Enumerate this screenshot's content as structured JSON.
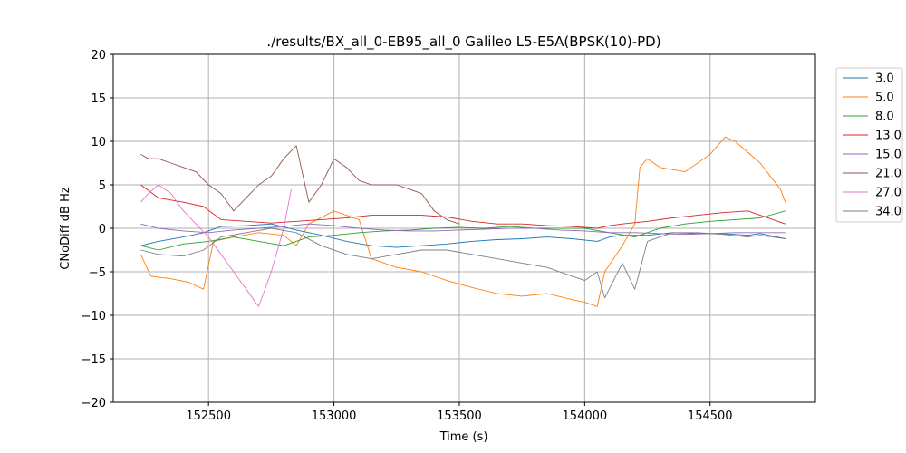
{
  "chart_data": {
    "type": "line",
    "title": "./results/BX_all_0-EB95_all_0 Galileo L5-E5A(BPSK(10)-PD)",
    "xlabel": "Time (s)",
    "ylabel": "CNoDiff dB Hz",
    "xlim": [
      152120,
      154920
    ],
    "ylim": [
      -20,
      20
    ],
    "xticks": [
      152500,
      153000,
      153500,
      154000,
      154500
    ],
    "yticks": [
      -20,
      -15,
      -10,
      -5,
      0,
      5,
      10,
      15,
      20
    ],
    "grid": true,
    "legend_position": "right, outside plot, top",
    "series": [
      {
        "name": "3.0",
        "color": "#1f77b4",
        "x": [
          152230,
          152300,
          152400,
          152480,
          152550,
          152650,
          152750,
          152850,
          152950,
          153050,
          153150,
          153250,
          153350,
          153450,
          153550,
          153650,
          153750,
          153850,
          153950,
          154050,
          154100,
          154150,
          154250,
          154350,
          154450,
          154550,
          154650,
          154700,
          154800
        ],
        "y": [
          -2.0,
          -1.5,
          -1.0,
          -0.5,
          0.2,
          0.3,
          0.5,
          -0.2,
          -0.8,
          -1.5,
          -2.0,
          -2.2,
          -2.0,
          -1.8,
          -1.5,
          -1.3,
          -1.2,
          -1.0,
          -1.2,
          -1.5,
          -1.0,
          -0.8,
          -0.8,
          -0.5,
          -0.6,
          -0.6,
          -0.8,
          -0.6,
          -1.2
        ]
      },
      {
        "name": "5.0",
        "color": "#ff7f0e",
        "x": [
          152230,
          152270,
          152350,
          152420,
          152480,
          152520,
          152600,
          152700,
          152800,
          152850,
          152900,
          153000,
          153100,
          153150,
          153250,
          153350,
          153450,
          153550,
          153650,
          153750,
          153850,
          153950,
          154000,
          154050,
          154080,
          154150,
          154200,
          154220,
          154250,
          154300,
          154400,
          154500,
          154560,
          154600,
          154700,
          154780,
          154800
        ],
        "y": [
          -3.0,
          -5.5,
          -5.8,
          -6.2,
          -7.0,
          -1.5,
          -1.0,
          -0.5,
          -0.8,
          -2.0,
          0.5,
          2.0,
          1.0,
          -3.5,
          -4.5,
          -5.0,
          -6.0,
          -6.8,
          -7.5,
          -7.8,
          -7.5,
          -8.2,
          -8.5,
          -9.0,
          -5.0,
          -2.0,
          0.5,
          7.0,
          8.0,
          7.0,
          6.5,
          8.5,
          10.5,
          10.0,
          7.5,
          4.5,
          3.0
        ]
      },
      {
        "name": "8.0",
        "color": "#2ca02c",
        "x": [
          152230,
          152300,
          152400,
          152500,
          152600,
          152700,
          152800,
          152900,
          153000,
          153100,
          153200,
          153300,
          153400,
          153500,
          153600,
          153700,
          153800,
          153900,
          154000,
          154100,
          154200,
          154300,
          154400,
          154500,
          154600,
          154700,
          154800
        ],
        "y": [
          -2.0,
          -2.5,
          -1.8,
          -1.5,
          -1.0,
          -1.5,
          -2.0,
          -1.0,
          -0.8,
          -0.5,
          -0.3,
          -0.2,
          0.0,
          0.1,
          0.0,
          0.2,
          0.0,
          0.0,
          0.0,
          -0.5,
          -1.0,
          0.0,
          0.5,
          0.8,
          1.0,
          1.2,
          2.0
        ]
      },
      {
        "name": "13.0",
        "color": "#d62728",
        "x": [
          152230,
          152300,
          152400,
          152480,
          152550,
          152650,
          152750,
          152850,
          152950,
          153050,
          153150,
          153250,
          153350,
          153450,
          153550,
          153650,
          153750,
          153850,
          153950,
          154050,
          154100,
          154150,
          154250,
          154350,
          154450,
          154550,
          154650,
          154700,
          154800
        ],
        "y": [
          5.0,
          3.5,
          3.0,
          2.5,
          1.0,
          0.8,
          0.6,
          0.8,
          1.0,
          1.2,
          1.5,
          1.5,
          1.5,
          1.3,
          0.8,
          0.5,
          0.5,
          0.3,
          0.2,
          0.0,
          0.3,
          0.5,
          0.8,
          1.2,
          1.5,
          1.8,
          2.0,
          1.5,
          0.5
        ]
      },
      {
        "name": "15.0",
        "color": "#9467bd",
        "x": [
          152230,
          152300,
          152400,
          152500,
          152600,
          152700,
          152800,
          152900,
          153000,
          153100,
          153200,
          153300,
          153400,
          153500,
          153600,
          153700,
          153800,
          153900,
          154000,
          154100,
          154200,
          154300,
          154400,
          154500,
          154600,
          154700,
          154800
        ],
        "y": [
          0.5,
          0.0,
          -0.3,
          -0.5,
          -0.2,
          0.0,
          0.2,
          0.5,
          0.3,
          0.0,
          -0.2,
          -0.3,
          -0.3,
          -0.2,
          -0.1,
          0.0,
          0.0,
          -0.2,
          -0.3,
          -0.5,
          -0.5,
          -0.6,
          -0.7,
          -0.6,
          -0.5,
          -0.5,
          -0.5
        ]
      },
      {
        "name": "21.0",
        "color": "#8c564b",
        "x": [
          152230,
          152260,
          152300,
          152350,
          152400,
          152450,
          152500,
          152550,
          152600,
          152650,
          152700,
          152750,
          152800,
          152850,
          152900,
          152950,
          153000,
          153050,
          153100,
          153150,
          153200,
          153250,
          153300,
          153350,
          153400,
          153450,
          153500
        ],
        "y": [
          8.5,
          8.0,
          8.0,
          7.5,
          7.0,
          6.5,
          5.0,
          4.0,
          2.0,
          3.5,
          5.0,
          6.0,
          8.0,
          9.5,
          3.0,
          5.0,
          8.0,
          7.0,
          5.5,
          5.0,
          5.0,
          5.0,
          4.5,
          4.0,
          2.0,
          1.0,
          0.5
        ]
      },
      {
        "name": "27.0",
        "color": "#e377c2",
        "x": [
          152230,
          152260,
          152300,
          152350,
          152400,
          152450,
          152500,
          152550,
          152600,
          152650,
          152700,
          152750,
          152800,
          152830
        ],
        "y": [
          3.0,
          4.0,
          5.0,
          4.0,
          2.0,
          0.5,
          -1.0,
          -3.0,
          -5.0,
          -7.0,
          -9.0,
          -5.0,
          0.0,
          4.5
        ]
      },
      {
        "name": "34.0",
        "color": "#7f7f7f",
        "x": [
          152230,
          152300,
          152400,
          152480,
          152550,
          152650,
          152750,
          152850,
          152950,
          153050,
          153150,
          153250,
          153350,
          153450,
          153550,
          153650,
          153750,
          153850,
          153950,
          154000,
          154050,
          154080,
          154150,
          154200,
          154250,
          154350,
          154450,
          154550,
          154650,
          154700,
          154800
        ],
        "y": [
          -2.5,
          -3.0,
          -3.2,
          -2.5,
          -1.0,
          -0.5,
          0.0,
          -0.5,
          -2.0,
          -3.0,
          -3.5,
          -3.0,
          -2.5,
          -2.5,
          -3.0,
          -3.5,
          -4.0,
          -4.5,
          -5.5,
          -6.0,
          -5.0,
          -8.0,
          -4.0,
          -7.0,
          -1.5,
          -0.5,
          -0.5,
          -0.7,
          -1.0,
          -0.8,
          -1.2
        ]
      }
    ]
  }
}
